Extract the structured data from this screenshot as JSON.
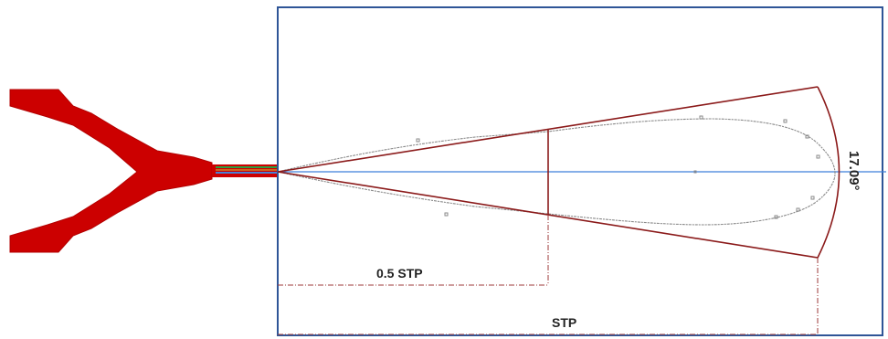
{
  "diagram": {
    "labels": {
      "half_stp": "0.5 STP",
      "stp": "STP",
      "angle": "17.09°"
    },
    "colors": {
      "nozzle": "#cc0000",
      "nozzle_outline": "#b30000",
      "spray_cone": "#8b1a1a",
      "axis": "#3f7fd9",
      "frame": "#2f5597",
      "spray_contour": "#8a8a8a",
      "dimension_line": "#9e3a3a"
    }
  }
}
